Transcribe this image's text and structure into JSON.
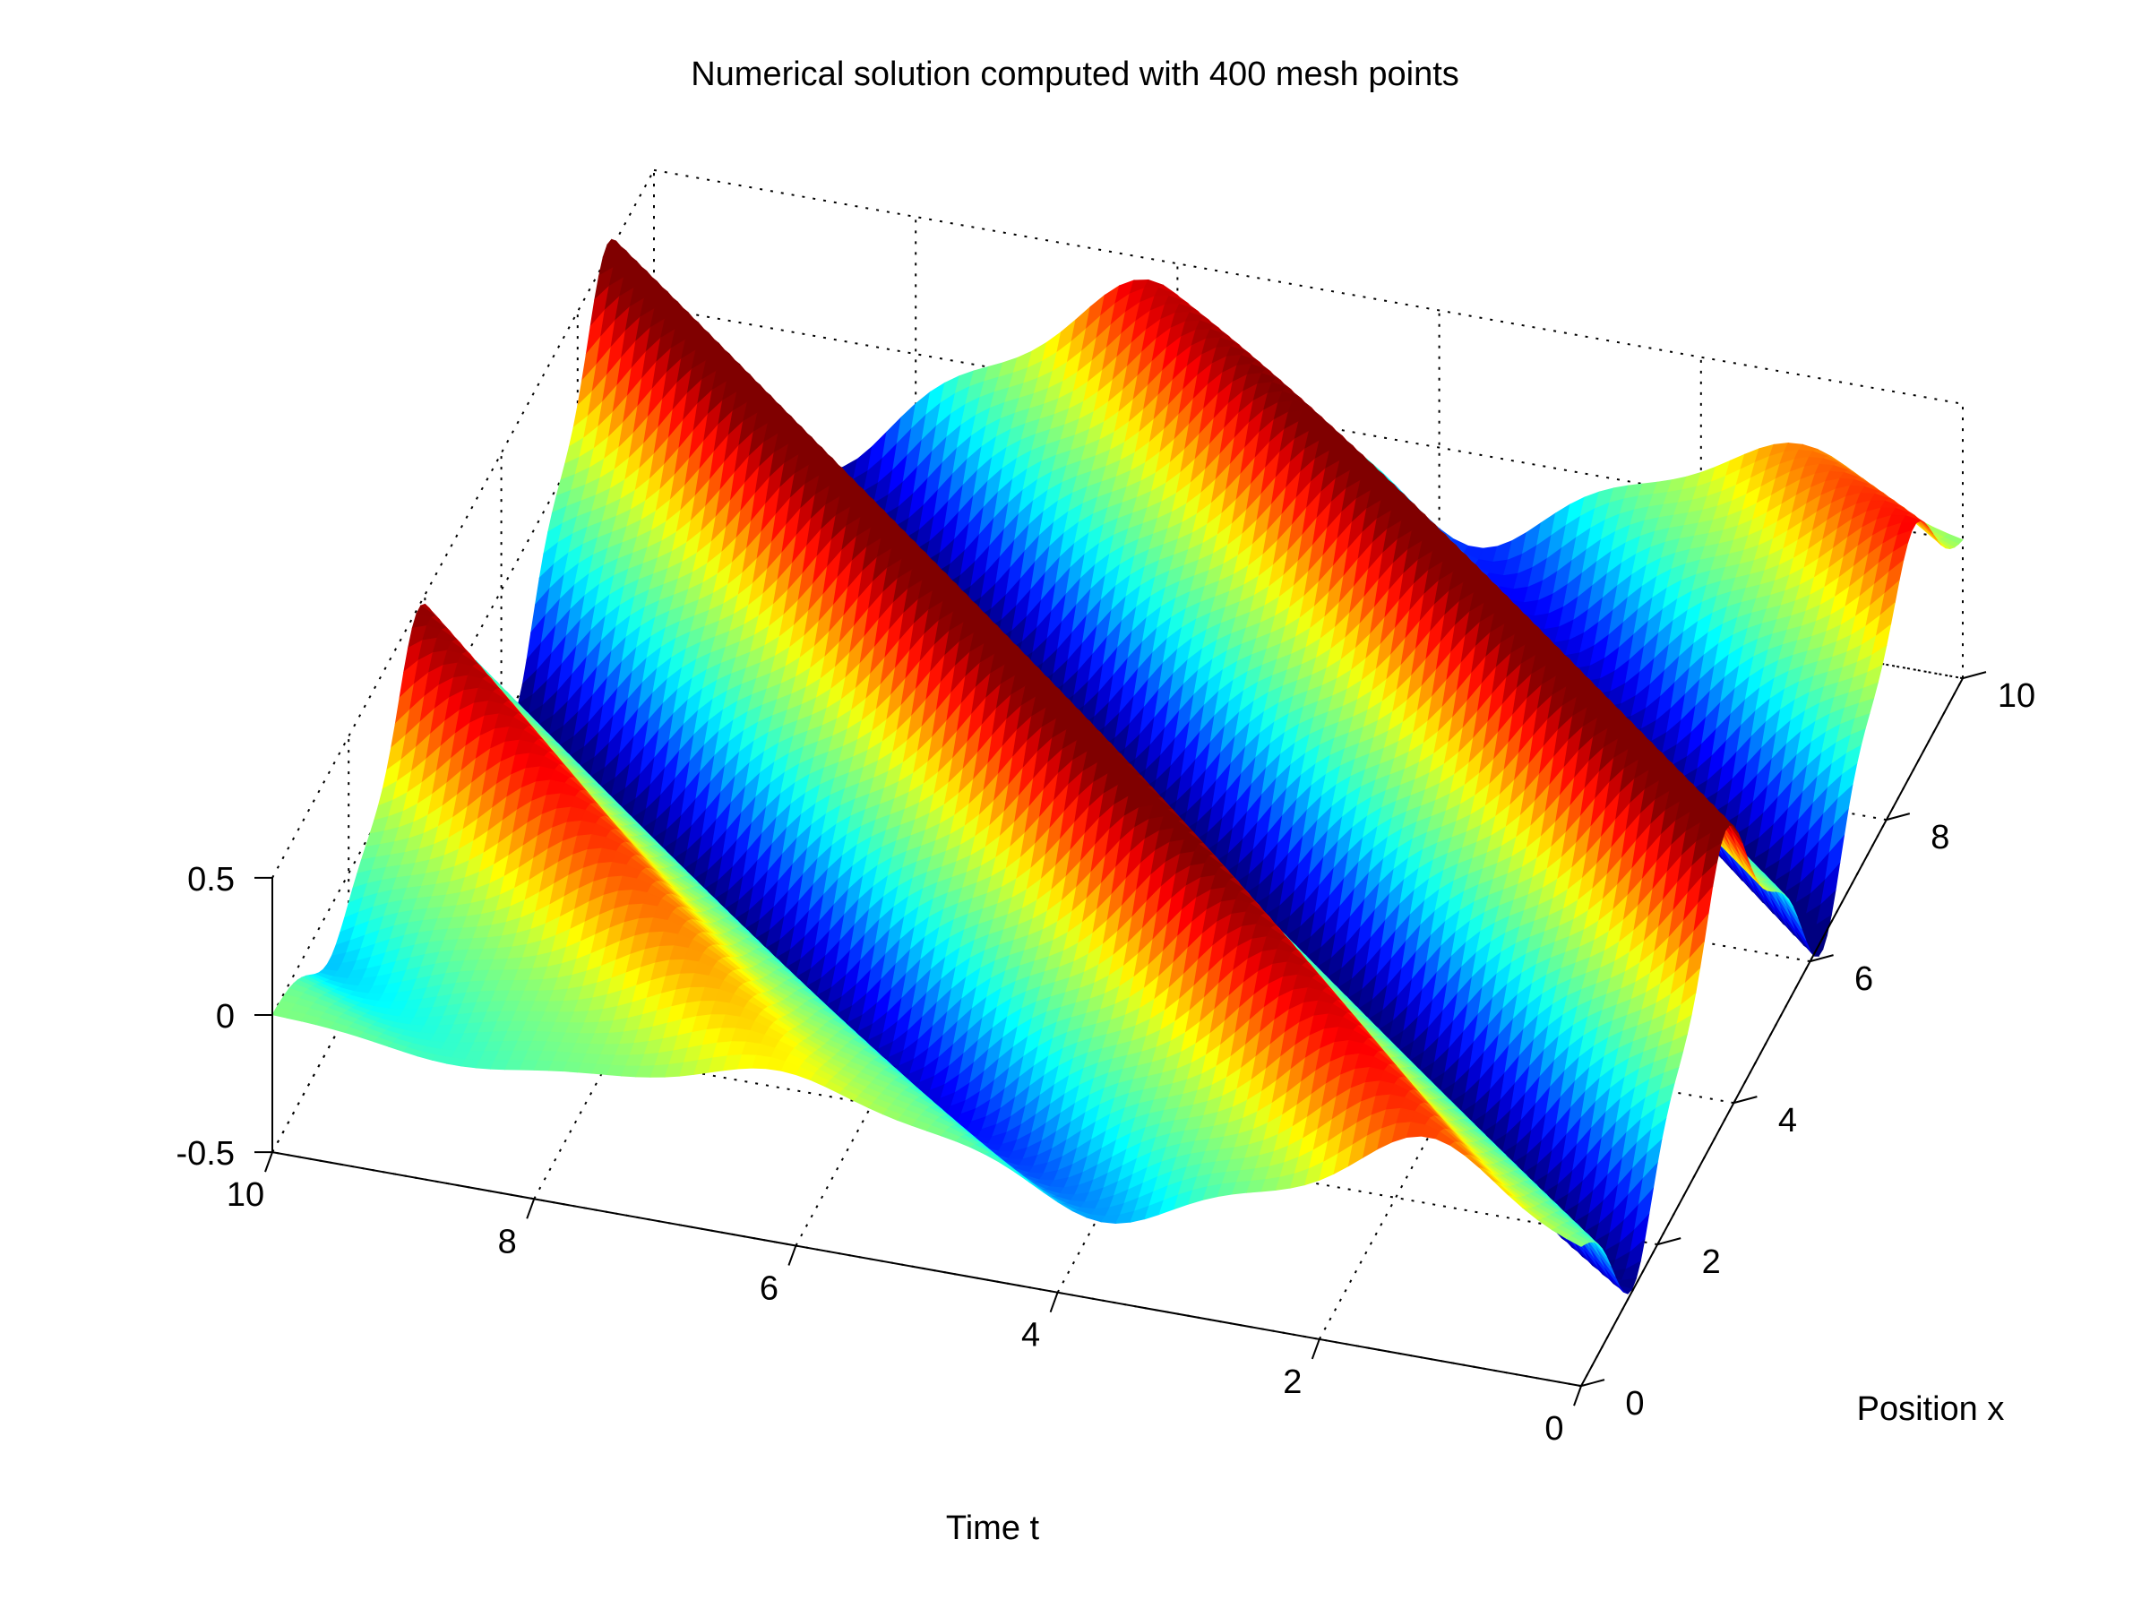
{
  "chart_data": {
    "type": "surface",
    "title": "Numerical solution computed with 400 mesh points",
    "xlabel": "Time t",
    "ylabel": "Position x",
    "zlabel": "",
    "xlim": [
      0,
      10
    ],
    "ylim": [
      0,
      10
    ],
    "zlim": [
      -0.5,
      0.5
    ],
    "xticks": [
      0,
      2,
      4,
      6,
      8,
      10
    ],
    "xtick_labels": [
      "0",
      "2",
      "4",
      "6",
      "8",
      "10"
    ],
    "yticks": [
      0,
      2,
      4,
      6,
      8,
      10
    ],
    "ytick_labels": [
      "0",
      "2",
      "4",
      "6",
      "8",
      "10"
    ],
    "zticks": [
      -0.5,
      0,
      0.5
    ],
    "ztick_labels": [
      "-0.5",
      "0",
      "0.5"
    ],
    "grid": true,
    "colormap": "jet",
    "mesh_points": 400,
    "surface_samples": {
      "function": "traveling Gaussian pulse u(t,x), peak amplitude ~0.55",
      "t": [
        0,
        1,
        2,
        3,
        4,
        5,
        6,
        7,
        8,
        9,
        10
      ],
      "x": [
        0,
        1,
        2,
        3,
        4,
        5,
        6,
        7,
        8,
        9,
        10
      ]
    }
  }
}
